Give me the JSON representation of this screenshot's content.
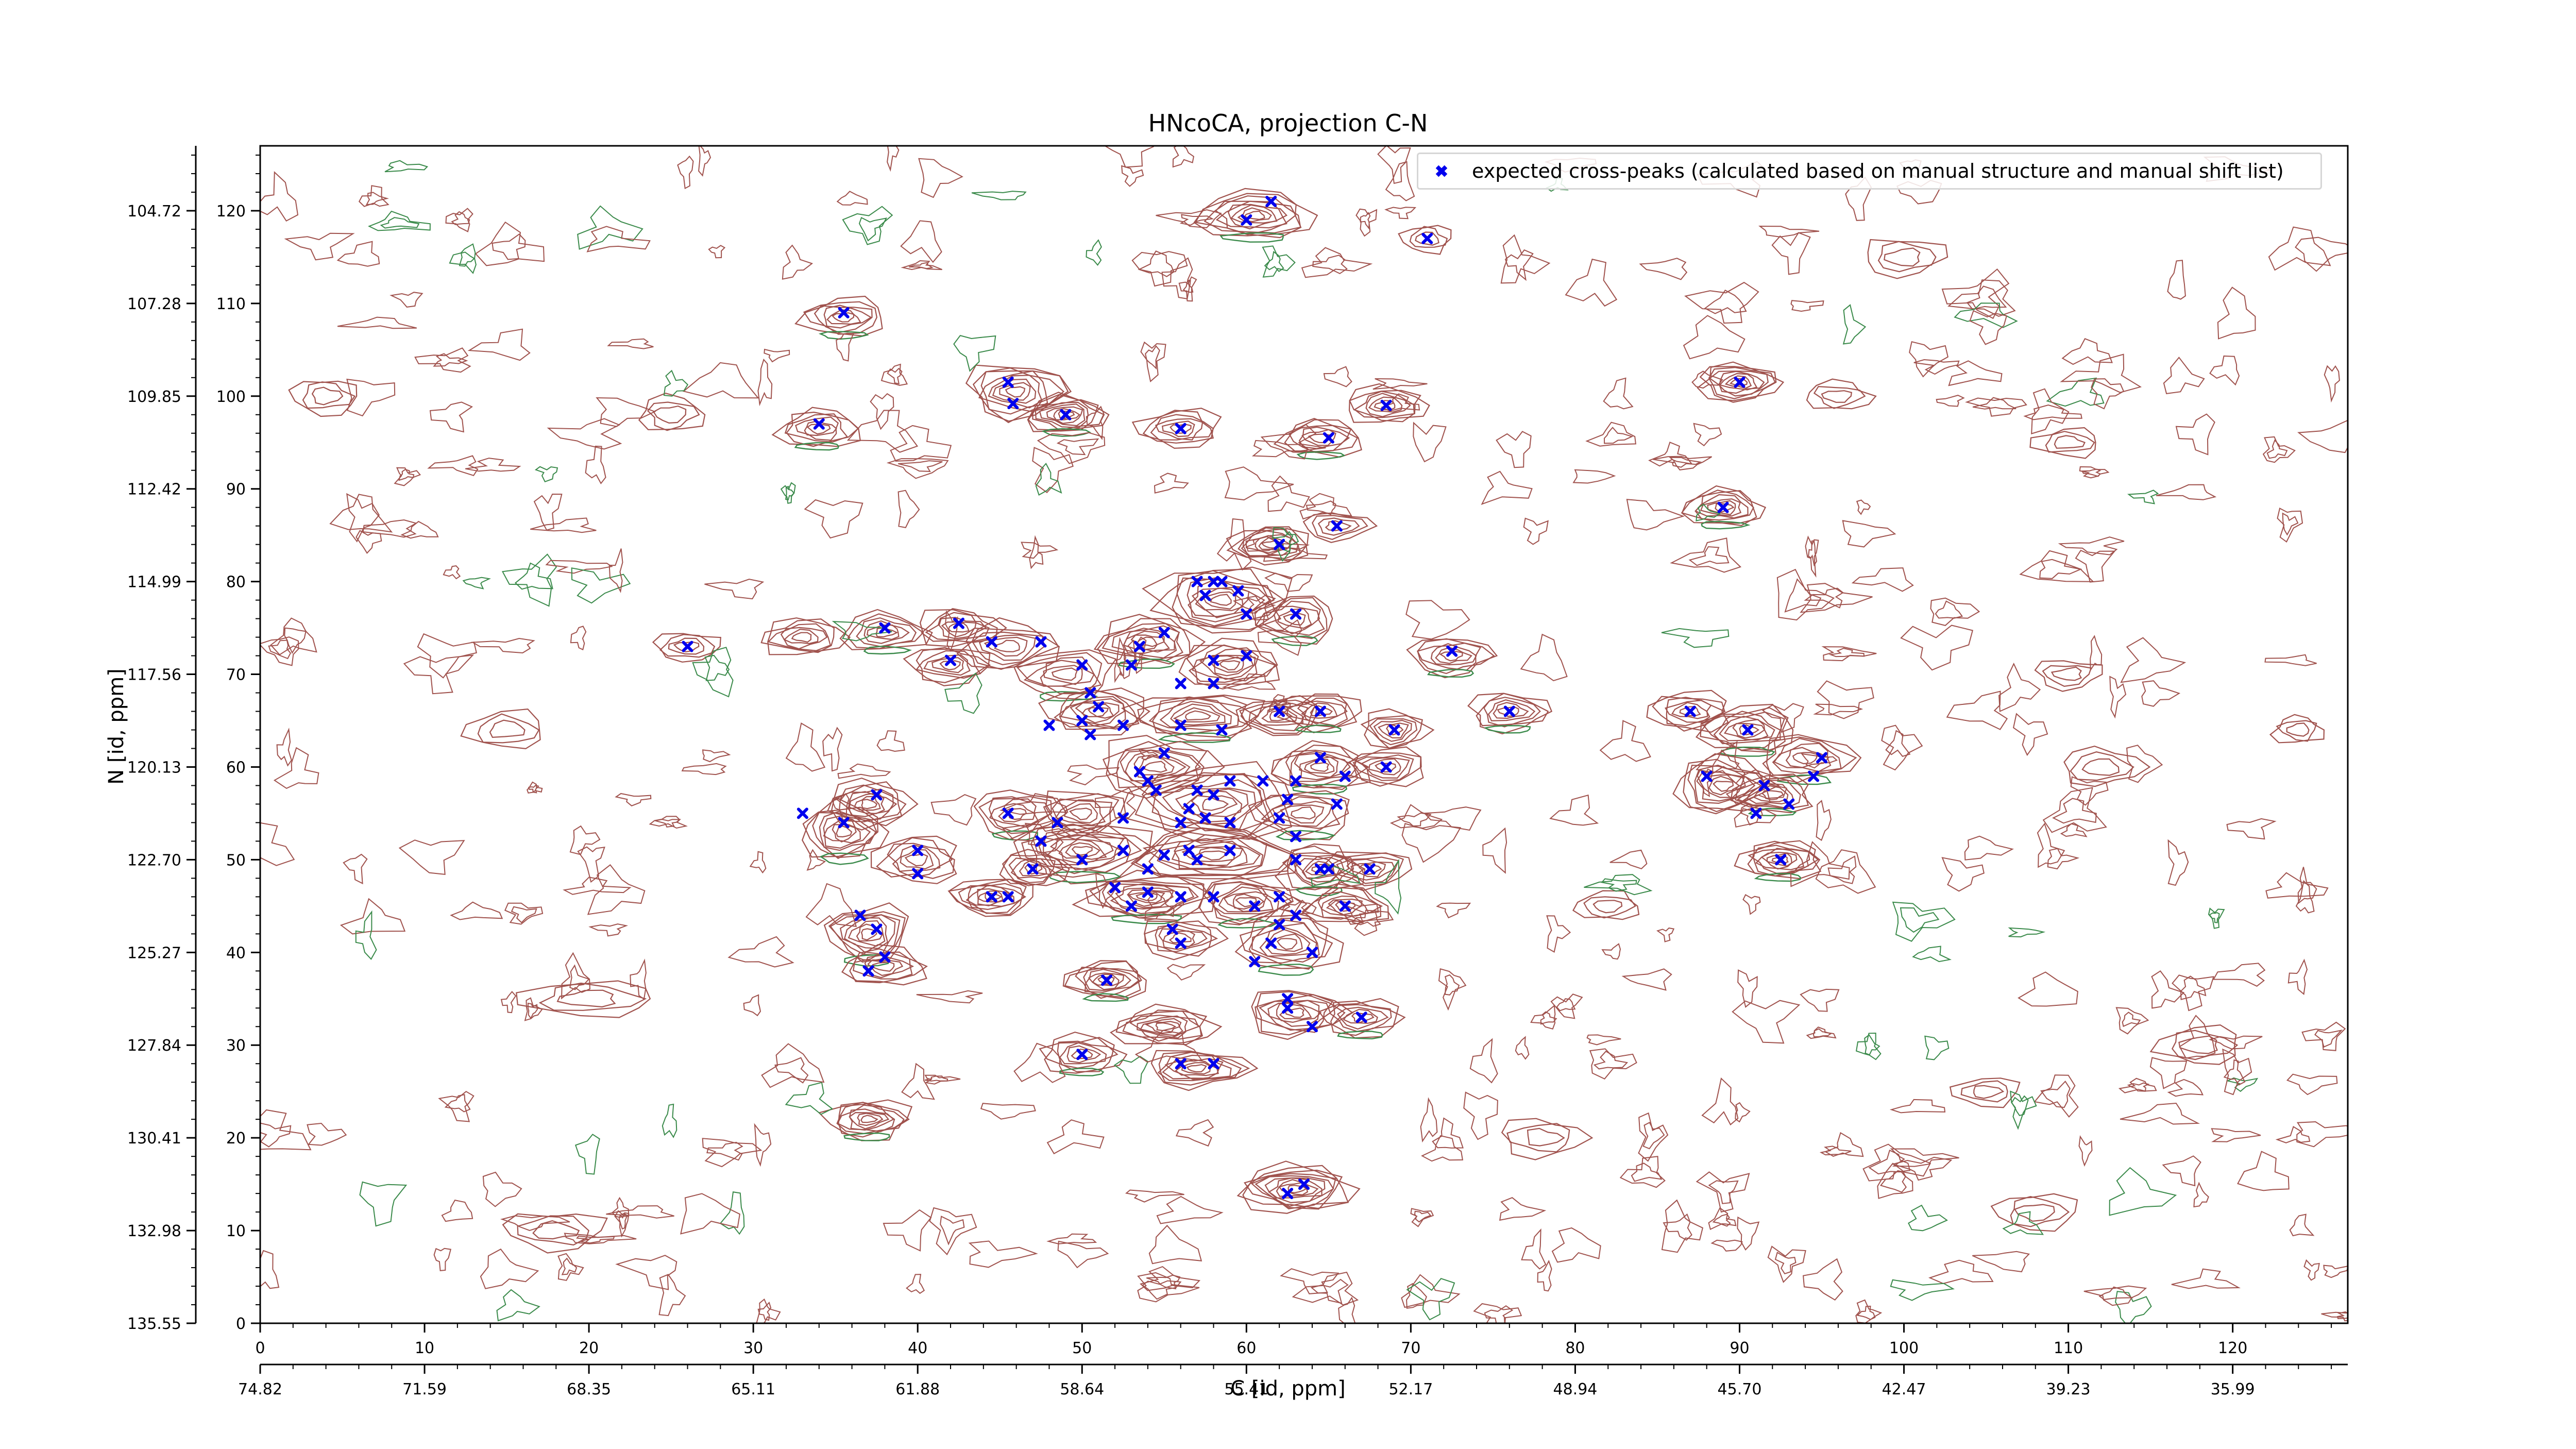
{
  "chart_data": {
    "type": "contour",
    "title": "HNcoCA, projection C-N",
    "xlabel": "C [id, ppm]",
    "ylabel": "N [id, ppm]",
    "x_index_range": [
      0,
      127
    ],
    "y_index_range": [
      0,
      127
    ],
    "x_index_ticks": [
      0,
      10,
      20,
      30,
      40,
      50,
      60,
      70,
      80,
      90,
      100,
      110,
      120
    ],
    "y_index_ticks": [
      0,
      10,
      20,
      30,
      40,
      50,
      60,
      70,
      80,
      90,
      100,
      110,
      120
    ],
    "x_ppm_ticks": [
      "74.82",
      "71.59",
      "68.35",
      "65.11",
      "61.88",
      "58.64",
      "55.41",
      "52.17",
      "48.94",
      "45.70",
      "42.47",
      "39.23",
      "35.99"
    ],
    "y_ppm_ticks": [
      "135.55",
      "132.98",
      "130.41",
      "127.84",
      "125.27",
      "122.70",
      "120.13",
      "117.56",
      "114.99",
      "112.42",
      "109.85",
      "107.28",
      "104.72"
    ],
    "positive_contour_color": "#a0524d",
    "negative_contour_color": "#3a8a4a",
    "marker_color": "#0000ee",
    "legend": {
      "position": "upper-right",
      "label": "expected cross-peaks (calculated based on manual structure and manual shift list)"
    },
    "expected_peaks": [
      [
        60,
        119
      ],
      [
        61.5,
        121
      ],
      [
        71,
        117
      ],
      [
        35.5,
        109
      ],
      [
        34,
        97
      ],
      [
        45.5,
        101.5
      ],
      [
        45.8,
        99.2
      ],
      [
        49,
        98
      ],
      [
        56,
        96.5
      ],
      [
        65,
        95.5
      ],
      [
        68.5,
        99
      ],
      [
        90,
        101.5
      ],
      [
        89,
        88
      ],
      [
        65.5,
        86
      ],
      [
        62,
        84
      ],
      [
        57,
        80
      ],
      [
        58,
        80
      ],
      [
        58.5,
        80
      ],
      [
        59.5,
        79
      ],
      [
        57.5,
        78.5
      ],
      [
        60,
        76.5
      ],
      [
        63,
        76.5
      ],
      [
        42.5,
        75.5
      ],
      [
        38,
        75
      ],
      [
        26,
        73
      ],
      [
        44.5,
        73.5
      ],
      [
        47.5,
        73.5
      ],
      [
        55,
        74.5
      ],
      [
        60,
        72
      ],
      [
        58,
        71.5
      ],
      [
        53.5,
        73
      ],
      [
        53,
        71
      ],
      [
        72.5,
        72.5
      ],
      [
        42,
        71.5
      ],
      [
        50,
        71
      ],
      [
        56,
        69
      ],
      [
        58,
        69
      ],
      [
        50.5,
        68
      ],
      [
        51,
        66.5
      ],
      [
        50,
        65
      ],
      [
        50.5,
        63.5
      ],
      [
        48,
        64.5
      ],
      [
        52.5,
        64.5
      ],
      [
        56,
        64.5
      ],
      [
        58.5,
        64
      ],
      [
        62,
        66
      ],
      [
        64.5,
        66
      ],
      [
        69,
        64
      ],
      [
        76,
        66
      ],
      [
        87,
        66
      ],
      [
        90.5,
        64
      ],
      [
        55,
        61.5
      ],
      [
        64.5,
        61
      ],
      [
        68.5,
        60
      ],
      [
        95,
        61
      ],
      [
        88,
        59
      ],
      [
        91.5,
        58
      ],
      [
        94.5,
        59
      ],
      [
        53.5,
        59.5
      ],
      [
        54,
        58.5
      ],
      [
        54.5,
        57.5
      ],
      [
        59,
        58.5
      ],
      [
        61,
        58.5
      ],
      [
        63,
        58.5
      ],
      [
        66,
        59
      ],
      [
        57,
        57.5
      ],
      [
        58,
        57
      ],
      [
        62.5,
        56.5
      ],
      [
        65.5,
        56
      ],
      [
        93,
        56
      ],
      [
        91,
        55
      ],
      [
        56.5,
        55.5
      ],
      [
        57.5,
        54.5
      ],
      [
        52.5,
        54.5
      ],
      [
        37.5,
        57
      ],
      [
        33,
        55
      ],
      [
        35.5,
        54
      ],
      [
        45.5,
        55
      ],
      [
        48.5,
        54
      ],
      [
        56,
        54
      ],
      [
        59,
        54
      ],
      [
        62,
        54.5
      ],
      [
        63,
        52.5
      ],
      [
        47.5,
        52
      ],
      [
        40,
        51
      ],
      [
        50,
        50
      ],
      [
        52.5,
        51
      ],
      [
        55,
        50.5
      ],
      [
        57,
        50
      ],
      [
        59,
        51
      ],
      [
        54,
        49
      ],
      [
        47,
        49
      ],
      [
        40,
        48.5
      ],
      [
        64.5,
        49
      ],
      [
        67.5,
        49
      ],
      [
        92.5,
        50
      ],
      [
        63,
        50
      ],
      [
        65,
        49
      ],
      [
        56.5,
        51
      ],
      [
        52,
        47
      ],
      [
        54,
        46.5
      ],
      [
        44.5,
        46
      ],
      [
        45.5,
        46
      ],
      [
        53,
        45
      ],
      [
        56,
        46
      ],
      [
        58,
        46
      ],
      [
        60.5,
        45
      ],
      [
        62,
        46
      ],
      [
        66,
        45
      ],
      [
        36.5,
        44
      ],
      [
        37.5,
        42.5
      ],
      [
        62,
        43
      ],
      [
        63,
        44
      ],
      [
        55.5,
        42.5
      ],
      [
        56,
        41
      ],
      [
        61.5,
        41
      ],
      [
        64,
        40
      ],
      [
        38,
        39.5
      ],
      [
        37,
        38
      ],
      [
        60.5,
        39
      ],
      [
        51.5,
        37
      ],
      [
        62.5,
        35
      ],
      [
        62.5,
        34
      ],
      [
        64,
        32
      ],
      [
        67,
        33
      ],
      [
        50,
        29
      ],
      [
        56,
        28
      ],
      [
        58,
        28
      ],
      [
        63.5,
        15
      ],
      [
        62.5,
        14
      ]
    ],
    "contour_peaks": [
      [
        60.5,
        119.5,
        7,
        5,
        9
      ],
      [
        71,
        117,
        3,
        3,
        3
      ],
      [
        35.5,
        108.5,
        5,
        4,
        6
      ],
      [
        90,
        101.5,
        5,
        4,
        8
      ],
      [
        34,
        96.5,
        5,
        4,
        6
      ],
      [
        46,
        100.5,
        6,
        6,
        8
      ],
      [
        49,
        98,
        5,
        4,
        8
      ],
      [
        56,
        96.5,
        5,
        4,
        6
      ],
      [
        64.5,
        95.5,
        5,
        4,
        6
      ],
      [
        68.5,
        99,
        5,
        4,
        6
      ],
      [
        89,
        88,
        5,
        4,
        7
      ],
      [
        61.5,
        84,
        5,
        4,
        8
      ],
      [
        65.5,
        86,
        4,
        3,
        4
      ],
      [
        58.5,
        78,
        8,
        7,
        10
      ],
      [
        63,
        76,
        5,
        5,
        6
      ],
      [
        42.5,
        75,
        5,
        4,
        6
      ],
      [
        38,
        74.5,
        5,
        4,
        6
      ],
      [
        33,
        74,
        5,
        4,
        6
      ],
      [
        26,
        73,
        4,
        3,
        4
      ],
      [
        45.5,
        73,
        6,
        5,
        6
      ],
      [
        54,
        73.5,
        6,
        5,
        8
      ],
      [
        59,
        71,
        6,
        5,
        8
      ],
      [
        72.5,
        72,
        5,
        4,
        6
      ],
      [
        42,
        71,
        5,
        4,
        6
      ],
      [
        49,
        70,
        6,
        5,
        6
      ],
      [
        51,
        66,
        6,
        5,
        8
      ],
      [
        57,
        65.5,
        8,
        5,
        8
      ],
      [
        62,
        65.5,
        5,
        4,
        6
      ],
      [
        64.5,
        66,
        5,
        4,
        6
      ],
      [
        69,
        64,
        4,
        4,
        6
      ],
      [
        76,
        66,
        5,
        4,
        6
      ],
      [
        87,
        66,
        5,
        4,
        6
      ],
      [
        90.5,
        64,
        6,
        5,
        8
      ],
      [
        54.5,
        60,
        7,
        6,
        8
      ],
      [
        64.5,
        60,
        6,
        5,
        8
      ],
      [
        68.5,
        60,
        5,
        4,
        6
      ],
      [
        94,
        61,
        6,
        5,
        6
      ],
      [
        89,
        58,
        6,
        6,
        8
      ],
      [
        92,
        57,
        5,
        4,
        6
      ],
      [
        58,
        56,
        10,
        8,
        10
      ],
      [
        63.5,
        55,
        6,
        5,
        6
      ],
      [
        50,
        55,
        5,
        5,
        6
      ],
      [
        46,
        55,
        5,
        5,
        6
      ],
      [
        37,
        56,
        5,
        5,
        8
      ],
      [
        35.5,
        53,
        5,
        6,
        8
      ],
      [
        40,
        50,
        5,
        5,
        6
      ],
      [
        50,
        51,
        8,
        6,
        10
      ],
      [
        58,
        50.5,
        10,
        6,
        10
      ],
      [
        64.5,
        49,
        5,
        5,
        8
      ],
      [
        67.5,
        49,
        5,
        4,
        6
      ],
      [
        92.5,
        50,
        5,
        4,
        8
      ],
      [
        47,
        49,
        4,
        4,
        6
      ],
      [
        54,
        46,
        8,
        5,
        10
      ],
      [
        44.5,
        46,
        5,
        4,
        8
      ],
      [
        60,
        45.5,
        6,
        5,
        8
      ],
      [
        66,
        45,
        5,
        4,
        6
      ],
      [
        37,
        42,
        5,
        6,
        8
      ],
      [
        56,
        41.5,
        5,
        4,
        6
      ],
      [
        62.5,
        41,
        6,
        6,
        8
      ],
      [
        38,
        38.5,
        5,
        4,
        6
      ],
      [
        51.5,
        37,
        5,
        4,
        8
      ],
      [
        63,
        33.5,
        6,
        5,
        8
      ],
      [
        67,
        33,
        5,
        4,
        6
      ],
      [
        55,
        32,
        6,
        4,
        8
      ],
      [
        50,
        29,
        5,
        4,
        6
      ],
      [
        57,
        27.5,
        6,
        4,
        8
      ],
      [
        37,
        22,
        5,
        4,
        8
      ],
      [
        63,
        14.5,
        7,
        5,
        10
      ],
      [
        100,
        115,
        5,
        4,
        3
      ],
      [
        96,
        100,
        4,
        3,
        3
      ],
      [
        110,
        70,
        4,
        3,
        3
      ],
      [
        112,
        60,
        5,
        4,
        3
      ],
      [
        105,
        25,
        4,
        3,
        3
      ],
      [
        20,
        35,
        8,
        4,
        3
      ],
      [
        15,
        64,
        5,
        4,
        3
      ],
      [
        118,
        30,
        5,
        4,
        3
      ],
      [
        25,
        98,
        4,
        4,
        3
      ],
      [
        110,
        95,
        4,
        3,
        3
      ],
      [
        82,
        45,
        4,
        3,
        3
      ],
      [
        78,
        20,
        5,
        4,
        3
      ],
      [
        18,
        10,
        6,
        4,
        3
      ],
      [
        108,
        12,
        5,
        4,
        3
      ],
      [
        4,
        100,
        4,
        4,
        3
      ],
      [
        124,
        64,
        3,
        3,
        3
      ]
    ]
  }
}
